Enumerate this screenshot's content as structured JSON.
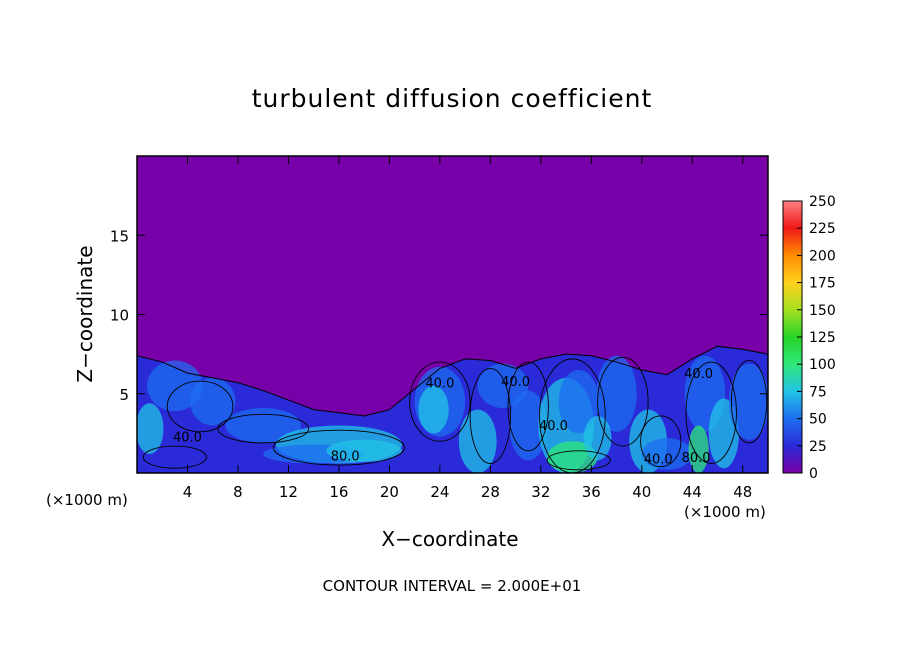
{
  "chart_data": {
    "type": "heatmap",
    "title": "turbulent diffusion coefficient",
    "xlabel": "X−coordinate",
    "ylabel": "Z−coordinate",
    "x_unit_left": "(×1000 m)",
    "x_unit_right": "(×1000 m)",
    "xlim": [
      0,
      50
    ],
    "ylim": [
      0,
      20
    ],
    "x_ticks": [
      4,
      8,
      12,
      16,
      20,
      24,
      28,
      32,
      36,
      40,
      44,
      48
    ],
    "y_ticks": [
      5,
      10,
      15
    ],
    "colorbar": {
      "min": 0,
      "max": 250,
      "ticks": [
        0,
        25,
        50,
        75,
        100,
        125,
        150,
        175,
        200,
        225,
        250
      ],
      "colors": [
        "#7800a8",
        "#2a2ad8",
        "#1e6ef0",
        "#22c4e6",
        "#2ee87a",
        "#28d428",
        "#a6e020",
        "#ffd21e",
        "#ff8c00",
        "#f01818",
        "#ff8080"
      ]
    },
    "contour_labels": [
      "40.0",
      "40.0",
      "40.0",
      "40.0",
      "80.0",
      "40.0",
      "40.0",
      "80.0"
    ],
    "contour_interval_text": "CONTOUR INTERVAL = 2.000E+01",
    "boundary_layer_top": [
      [
        0,
        7.4
      ],
      [
        2,
        7.0
      ],
      [
        4,
        6.3
      ],
      [
        6,
        6.0
      ],
      [
        8,
        5.7
      ],
      [
        10,
        5.2
      ],
      [
        12,
        4.6
      ],
      [
        14,
        4.0
      ],
      [
        16,
        3.8
      ],
      [
        18,
        3.6
      ],
      [
        20,
        4.0
      ],
      [
        22,
        5.3
      ],
      [
        24,
        6.6
      ],
      [
        26,
        7.2
      ],
      [
        28,
        7.1
      ],
      [
        30,
        6.6
      ],
      [
        32,
        7.2
      ],
      [
        34,
        7.5
      ],
      [
        36,
        7.4
      ],
      [
        38,
        7.0
      ],
      [
        40,
        6.5
      ],
      [
        42,
        6.2
      ],
      [
        44,
        7.2
      ],
      [
        46,
        8.0
      ],
      [
        48,
        7.8
      ],
      [
        50,
        7.5
      ]
    ]
  }
}
